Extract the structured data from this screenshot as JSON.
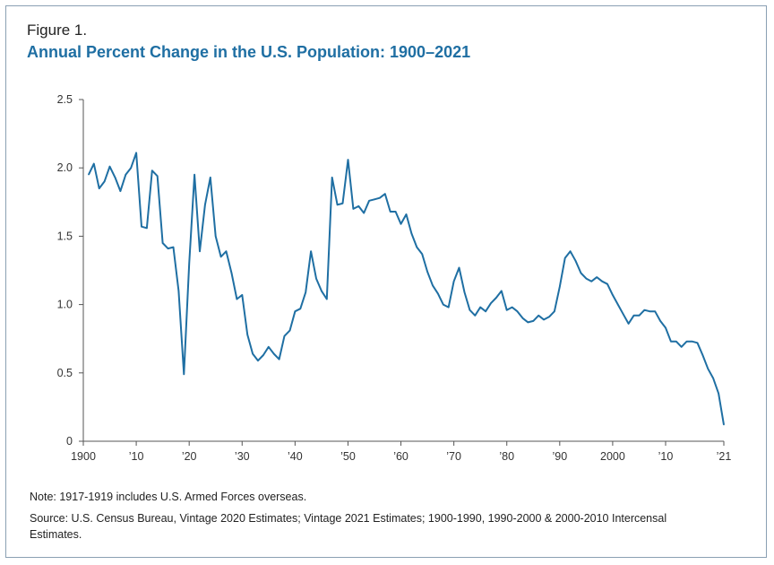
{
  "figure_label": "Figure 1.",
  "chart_data": {
    "type": "line",
    "title": "Annual Percent Change in the U.S. Population: 1900–2021",
    "xlabel": "",
    "ylabel": "",
    "xlim": [
      1900,
      2021
    ],
    "ylim": [
      0,
      2.5
    ],
    "yticks": [
      0,
      0.5,
      1.0,
      1.5,
      2.0,
      2.5
    ],
    "ytick_labels": [
      "0",
      "0.5",
      "1.0",
      "1.5",
      "2.0",
      "2.5"
    ],
    "xticks": [
      1900,
      1910,
      1920,
      1930,
      1940,
      1950,
      1960,
      1970,
      1980,
      1990,
      2000,
      2010,
      2021
    ],
    "xtick_labels": [
      "1900",
      "’10",
      "’20",
      "’30",
      "’40",
      "’50",
      "’60",
      "’70",
      "’80",
      "’90",
      "2000",
      "’10",
      "’21"
    ],
    "grid": false,
    "color": "#1f6fa3",
    "series": [
      {
        "x": [
          1901,
          1902,
          1903,
          1904,
          1905,
          1906,
          1907,
          1908,
          1909,
          1910,
          1911,
          1912,
          1913,
          1914,
          1915,
          1916,
          1917,
          1918,
          1919,
          1920,
          1921,
          1922,
          1923,
          1924,
          1925,
          1926,
          1927,
          1928,
          1929,
          1930,
          1931,
          1932,
          1933,
          1934,
          1935,
          1936,
          1937,
          1938,
          1939,
          1940,
          1941,
          1942,
          1943,
          1944,
          1945,
          1946,
          1947,
          1948,
          1949,
          1950,
          1951,
          1952,
          1953,
          1954,
          1955,
          1956,
          1957,
          1958,
          1959,
          1960,
          1961,
          1962,
          1963,
          1964,
          1965,
          1966,
          1967,
          1968,
          1969,
          1970,
          1971,
          1972,
          1973,
          1974,
          1975,
          1976,
          1977,
          1978,
          1979,
          1980,
          1981,
          1982,
          1983,
          1984,
          1985,
          1986,
          1987,
          1988,
          1989,
          1990,
          1991,
          1992,
          1993,
          1994,
          1995,
          1996,
          1997,
          1998,
          1999,
          2000,
          2001,
          2002,
          2003,
          2004,
          2005,
          2006,
          2007,
          2008,
          2009,
          2010,
          2011,
          2012,
          2013,
          2014,
          2015,
          2016,
          2017,
          2018,
          2019,
          2020,
          2021
        ],
        "values": [
          1.95,
          2.03,
          1.85,
          1.9,
          2.01,
          1.93,
          1.83,
          1.95,
          2.0,
          2.11,
          1.57,
          1.56,
          1.98,
          1.94,
          1.45,
          1.41,
          1.42,
          1.1,
          0.49,
          1.3,
          1.95,
          1.39,
          1.73,
          1.93,
          1.5,
          1.35,
          1.39,
          1.23,
          1.04,
          1.07,
          0.78,
          0.64,
          0.59,
          0.63,
          0.69,
          0.64,
          0.6,
          0.77,
          0.81,
          0.95,
          0.97,
          1.09,
          1.39,
          1.19,
          1.1,
          1.04,
          1.93,
          1.73,
          1.74,
          2.06,
          1.7,
          1.72,
          1.67,
          1.76,
          1.77,
          1.78,
          1.81,
          1.68,
          1.68,
          1.59,
          1.66,
          1.52,
          1.42,
          1.37,
          1.24,
          1.14,
          1.08,
          1.0,
          0.98,
          1.17,
          1.27,
          1.09,
          0.96,
          0.92,
          0.98,
          0.95,
          1.01,
          1.05,
          1.1,
          0.96,
          0.98,
          0.95,
          0.9,
          0.87,
          0.88,
          0.92,
          0.89,
          0.91,
          0.95,
          1.13,
          1.34,
          1.39,
          1.32,
          1.23,
          1.19,
          1.17,
          1.2,
          1.17,
          1.15,
          1.07,
          1.0,
          0.93,
          0.86,
          0.92,
          0.92,
          0.96,
          0.95,
          0.95,
          0.88,
          0.83,
          0.73,
          0.73,
          0.69,
          0.73,
          0.73,
          0.72,
          0.63,
          0.53,
          0.46,
          0.35,
          0.12
        ]
      }
    ]
  },
  "note": "Note: 1917-1919 includes U.S. Armed Forces overseas.",
  "source": "Source: U.S. Census Bureau, Vintage 2020 Estimates; Vintage 2021 Estimates; 1900-1990, 1990-2000 & 2000-2010 Intercensal Estimates."
}
